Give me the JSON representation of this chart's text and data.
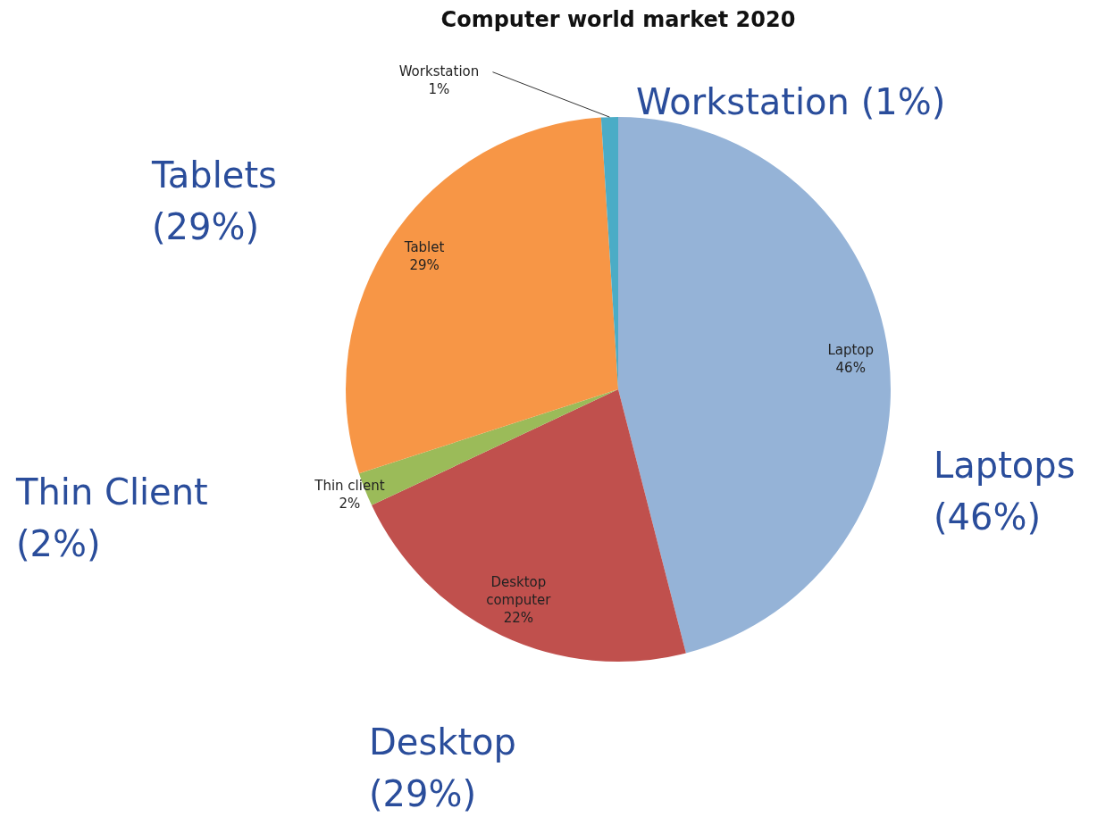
{
  "chart_data": {
    "type": "pie",
    "title": "Computer world market 2020",
    "categories": [
      "Laptop",
      "Desktop computer",
      "Thin client",
      "Tablet",
      "Workstation"
    ],
    "values": [
      46,
      22,
      2,
      29,
      1
    ],
    "colors": [
      "#95b3d7",
      "#c0504d",
      "#9bbb59",
      "#f79646",
      "#4bacc6"
    ],
    "value_labels": [
      "46%",
      "22%",
      "2%",
      "29%",
      "1%"
    ],
    "legend": false,
    "annotations": [
      "Workstation (1%)",
      "Tablets\n(29%)",
      "Thin Client\n(2%)",
      "Laptops\n(46%)",
      "Desktop\n(29%)"
    ]
  }
}
